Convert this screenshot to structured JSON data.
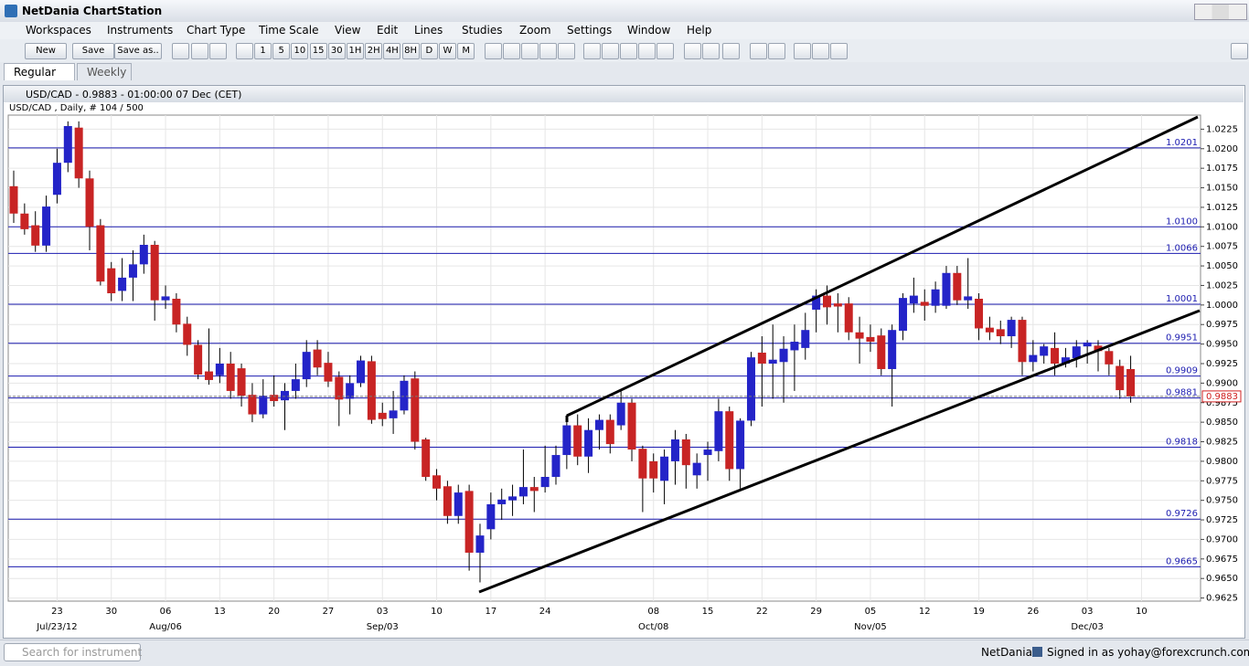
{
  "app": {
    "title": "NetDania ChartStation",
    "menu": [
      "Workspaces",
      "Instruments",
      "Chart Type",
      "Time Scale",
      "View",
      "Edit",
      "Lines",
      "Studies",
      "Zoom",
      "Settings",
      "Window",
      "Help"
    ],
    "buttons": [
      "New",
      "Save",
      "Save as.."
    ],
    "timeframes": [
      "1",
      "5",
      "10",
      "15",
      "30",
      "1H",
      "2H",
      "4H",
      "8H",
      "D",
      "W",
      "M"
    ],
    "tabs": [
      "Regular",
      "Weekly"
    ],
    "status": {
      "search": "Search for instrument",
      "brand": "NetDania",
      "signed_in": "Signed in as yohay@forexcrunch.com"
    }
  },
  "chart_data": {
    "type": "candlestick",
    "title": "USD/CAD - 0.9883 - 01:00:00  07 Dec (CET)",
    "subtitle": "USD/CAD , Daily, # 104 / 500",
    "up_color": "#2424c8",
    "down_color": "#c82424",
    "level_color": "#1c1cb0",
    "categories": [
      null,
      null,
      null,
      null,
      "23",
      null,
      null,
      null,
      null,
      "30",
      null,
      null,
      null,
      null,
      "06",
      null,
      null,
      null,
      null,
      "13",
      null,
      null,
      null,
      null,
      "20",
      null,
      null,
      null,
      null,
      "27",
      null,
      null,
      null,
      null,
      "03",
      null,
      null,
      null,
      null,
      "10",
      null,
      null,
      null,
      null,
      "17",
      null,
      null,
      null,
      null,
      "24",
      null,
      null,
      null,
      null,
      null,
      null,
      null,
      null,
      null,
      "08",
      null,
      null,
      null,
      null,
      "15",
      null,
      null,
      null,
      null,
      "22",
      null,
      null,
      null,
      null,
      "29",
      null,
      null,
      null,
      null,
      "05",
      null,
      null,
      null,
      null,
      "12",
      null,
      null,
      null,
      null,
      "19",
      null,
      null,
      null,
      null,
      "26",
      null,
      null,
      null,
      null,
      "03",
      null,
      null,
      null,
      null,
      "10"
    ],
    "month_labels": [
      null,
      null,
      null,
      null,
      "Jul/23/12",
      null,
      null,
      null,
      null,
      null,
      null,
      null,
      null,
      null,
      "Aug/06",
      null,
      null,
      null,
      null,
      null,
      null,
      null,
      null,
      null,
      null,
      null,
      null,
      null,
      null,
      null,
      null,
      null,
      null,
      null,
      "Sep/03",
      null,
      null,
      null,
      null,
      null,
      null,
      null,
      null,
      null,
      null,
      null,
      null,
      null,
      null,
      null,
      null,
      null,
      null,
      null,
      null,
      null,
      null,
      null,
      null,
      "Oct/08",
      null,
      null,
      null,
      null,
      null,
      null,
      null,
      null,
      null,
      null,
      null,
      null,
      null,
      null,
      null,
      null,
      null,
      null,
      null,
      "Nov/05",
      null,
      null,
      null,
      null,
      null,
      null,
      null,
      null,
      null,
      null,
      null,
      null,
      null,
      null,
      null,
      null,
      null,
      null,
      null,
      "Dec/03",
      null,
      null,
      null,
      null,
      null
    ],
    "open": [
      1.0152,
      1.0117,
      1.0102,
      1.0076,
      1.0141,
      1.0182,
      1.0227,
      1.0162,
      1.0102,
      1.0047,
      1.0018,
      1.0035,
      1.0052,
      1.0077,
      1.0006,
      1.0008,
      0.9976,
      0.9949,
      0.9915,
      0.991,
      0.9925,
      0.9919,
      0.9885,
      0.986,
      0.9885,
      0.9878,
      0.989,
      0.9905,
      0.9943,
      0.9926,
      0.9908,
      0.988,
      0.99,
      0.9928,
      0.9862,
      0.9855,
      0.9865,
      0.9906,
      0.9828,
      0.9782,
      0.9768,
      0.973,
      0.9762,
      0.9683,
      0.9713,
      0.9745,
      0.975,
      0.9755,
      0.9767,
      0.9767,
      0.978,
      0.9808,
      0.9846,
      0.9806,
      0.984,
      0.9853,
      0.9846,
      0.9875,
      0.9816,
      0.98,
      0.9775,
      0.98,
      0.9828,
      0.9782,
      0.9808,
      0.9813,
      0.9864,
      0.979,
      0.9852,
      0.9939,
      0.9925,
      0.9927,
      0.9942,
      0.9945,
      0.9994,
      1.0012,
      1.0002,
      1.0002,
      0.9965,
      0.9959,
      0.9961,
      0.9918,
      0.9967,
      1.0002,
      1.0004,
      0.9999,
      0.9999,
      1.0041,
      1.0006,
      1.0008,
      0.9971,
      0.9969,
      0.996,
      0.9981,
      0.9927,
      0.9935,
      0.9945,
      0.9925,
      0.9932,
      0.9947,
      0.9948,
      0.9941,
      0.9922,
      0.9918,
      null
    ],
    "high": [
      1.0172,
      1.013,
      1.012,
      1.014,
      1.02,
      1.0235,
      1.0235,
      1.0172,
      1.011,
      1.0055,
      1.006,
      1.007,
      1.009,
      1.0082,
      1.0025,
      1.0015,
      0.9985,
      0.9955,
      0.997,
      0.9945,
      0.994,
      0.9925,
      0.99,
      0.9905,
      0.991,
      0.99,
      0.9925,
      0.9955,
      0.9955,
      0.994,
      0.9915,
      0.991,
      0.9935,
      0.9935,
      0.9875,
      0.989,
      0.991,
      0.9915,
      0.983,
      0.979,
      0.9775,
      0.977,
      0.977,
      0.972,
      0.976,
      0.9765,
      0.977,
      0.9815,
      0.978,
      0.982,
      0.982,
      0.986,
      0.986,
      0.9855,
      0.986,
      0.986,
      0.989,
      0.988,
      0.982,
      0.981,
      0.9815,
      0.984,
      0.9835,
      0.981,
      0.9825,
      0.988,
      0.987,
      0.9855,
      0.994,
      0.996,
      0.9975,
      0.996,
      0.9975,
      0.999,
      1.002,
      1.0025,
      1.0015,
      1.001,
      0.9985,
      0.9975,
      0.997,
      0.9975,
      1.0015,
      1.0035,
      1.002,
      1.003,
      1.005,
      1.005,
      1.006,
      1.0015,
      0.9985,
      0.998,
      0.9985,
      0.9985,
      0.9955,
      0.995,
      0.9965,
      0.9945,
      0.9955,
      0.9955,
      0.9955,
      0.9945,
      0.993,
      0.9935,
      null
    ],
    "low": [
      1.0105,
      1.009,
      1.0068,
      1.0068,
      1.013,
      1.017,
      1.015,
      1.007,
      1.0025,
      1.0005,
      1.0005,
      1.0005,
      1.004,
      0.998,
      0.9995,
      0.9965,
      0.9935,
      0.9905,
      0.9898,
      0.99,
      0.988,
      0.987,
      0.985,
      0.9855,
      0.987,
      0.984,
      0.988,
      0.9895,
      0.991,
      0.9895,
      0.9845,
      0.986,
      0.9895,
      0.9848,
      0.9845,
      0.9835,
      0.986,
      0.9815,
      0.9775,
      0.975,
      0.972,
      0.972,
      0.966,
      0.9645,
      0.97,
      0.9725,
      0.973,
      0.9745,
      0.9735,
      0.976,
      0.977,
      0.979,
      0.9795,
      0.9785,
      0.9815,
      0.981,
      0.984,
      0.98,
      0.9735,
      0.976,
      0.9745,
      0.977,
      0.9765,
      0.9765,
      0.9775,
      0.98,
      0.9775,
      0.9765,
      0.9845,
      0.987,
      0.988,
      0.9875,
      0.989,
      0.993,
      0.9965,
      0.9975,
      0.9965,
      0.9955,
      0.9925,
      0.994,
      0.991,
      0.987,
      0.9955,
      0.999,
      0.998,
      0.999,
      0.9995,
      1.0,
      0.9995,
      0.9955,
      0.9955,
      0.995,
      0.9945,
      0.991,
      0.9915,
      0.9925,
      0.991,
      0.992,
      0.992,
      0.9925,
      0.9915,
      0.991,
      0.988,
      0.9875,
      null
    ],
    "close": [
      1.0117,
      1.0097,
      1.0076,
      1.0126,
      1.0182,
      1.0229,
      1.0162,
      1.01,
      1.003,
      1.0015,
      1.0035,
      1.0052,
      1.0077,
      1.0006,
      1.0011,
      0.9975,
      0.9949,
      0.9911,
      0.9904,
      0.9925,
      0.989,
      0.9884,
      0.986,
      0.9884,
      0.9877,
      0.989,
      0.9905,
      0.994,
      0.992,
      0.9902,
      0.9879,
      0.99,
      0.9929,
      0.9853,
      0.9854,
      0.9865,
      0.9903,
      0.9825,
      0.978,
      0.9765,
      0.973,
      0.976,
      0.9683,
      0.9705,
      0.9745,
      0.9751,
      0.9755,
      0.9767,
      0.9762,
      0.978,
      0.9808,
      0.9846,
      0.9806,
      0.984,
      0.9853,
      0.9822,
      0.9875,
      0.9815,
      0.9778,
      0.9778,
      0.9806,
      0.9828,
      0.9795,
      0.9798,
      0.9815,
      0.9864,
      0.979,
      0.9852,
      0.9933,
      0.9925,
      0.993,
      0.9944,
      0.9953,
      0.9968,
      1.0012,
      0.9997,
      0.9998,
      0.9965,
      0.9957,
      0.9953,
      0.9918,
      0.9968,
      1.0009,
      1.0012,
      0.9999,
      1.002,
      1.0041,
      1.0006,
      1.0011,
      0.997,
      0.9965,
      0.996,
      0.9981,
      0.9927,
      0.9936,
      0.9947,
      0.9925,
      0.9933,
      0.9947,
      0.9952,
      0.9941,
      0.9924,
      0.9891,
      0.9883,
      null
    ],
    "levels": [
      1.0201,
      {
        "value": 1.01,
        "label": "1.0100"
      },
      1.0066,
      1.0001,
      0.9951,
      0.9909,
      0.9881,
      0.9818,
      0.9726,
      0.9665
    ],
    "last_price": 0.9883,
    "ylim": [
      0.9621,
      1.0243
    ],
    "yticks": [
      1.0225,
      {
        "value": 1.02,
        "label": "1.0200"
      },
      1.0175,
      {
        "value": 1.015,
        "label": "1.0150"
      },
      1.0125,
      {
        "value": 1.01,
        "label": "1.0100"
      },
      1.0075,
      {
        "value": 1.005,
        "label": "1.0050"
      },
      1.0025,
      {
        "value": 1,
        "label": "1.0000"
      },
      0.9975,
      {
        "value": 0.995,
        "label": "0.9950"
      },
      0.9925,
      {
        "value": 0.99,
        "label": "0.9900"
      },
      0.9875,
      {
        "value": 0.985,
        "label": "0.9850"
      },
      0.9825,
      {
        "value": 0.98,
        "label": "0.9800"
      },
      0.9775,
      {
        "value": 0.975,
        "label": "0.9750"
      },
      0.9725,
      {
        "value": 0.97,
        "label": "0.9700"
      },
      0.9675,
      {
        "value": 0.965,
        "label": "0.9650"
      },
      0.9625
    ]
  }
}
